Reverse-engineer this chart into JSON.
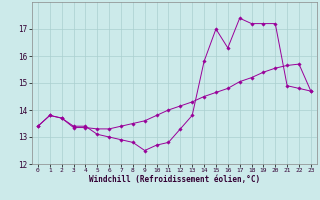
{
  "xlabel": "Windchill (Refroidissement éolien,°C)",
  "background_color": "#cceaea",
  "line_color": "#990099",
  "grid_color": "#aacfcf",
  "series1_x": [
    0,
    1,
    2,
    3,
    4,
    5,
    6,
    7,
    8,
    9,
    10,
    11,
    12,
    13,
    14,
    15,
    16,
    17,
    18,
    19,
    20,
    21,
    22,
    23
  ],
  "series1_y": [
    13.4,
    13.8,
    13.7,
    13.4,
    13.4,
    13.1,
    13.0,
    12.9,
    12.8,
    12.5,
    12.7,
    12.8,
    13.3,
    13.8,
    15.8,
    17.0,
    16.3,
    17.4,
    17.2,
    17.2,
    17.2,
    14.9,
    14.8,
    14.7
  ],
  "series2_x": [
    0,
    1,
    2,
    3,
    4,
    5,
    6,
    7,
    8,
    9,
    10,
    11,
    12,
    13,
    14,
    15,
    16,
    17,
    18,
    19,
    20,
    21,
    22,
    23
  ],
  "series2_y": [
    13.4,
    13.8,
    13.7,
    13.35,
    13.35,
    13.3,
    13.3,
    13.4,
    13.5,
    13.6,
    13.8,
    14.0,
    14.15,
    14.3,
    14.5,
    14.65,
    14.8,
    15.05,
    15.2,
    15.4,
    15.55,
    15.65,
    15.7,
    14.7
  ],
  "ylim_min": 12,
  "ylim_max": 18,
  "yticks": [
    12,
    13,
    14,
    15,
    16,
    17
  ],
  "xticks": [
    0,
    1,
    2,
    3,
    4,
    5,
    6,
    7,
    8,
    9,
    10,
    11,
    12,
    13,
    14,
    15,
    16,
    17,
    18,
    19,
    20,
    21,
    22,
    23
  ],
  "marker": "D",
  "markersize": 1.8,
  "linewidth": 0.7
}
